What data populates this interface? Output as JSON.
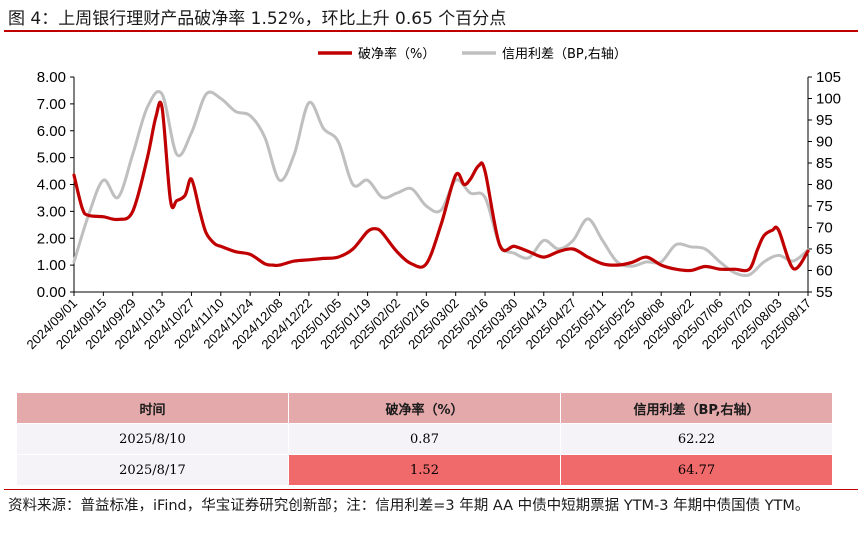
{
  "title": "图 4：上周银行理财产品破净率 1.52%，环比上升 0.65 个百分点",
  "chart_data": {
    "type": "line",
    "legend_position": "top",
    "grid": false,
    "x_ticks": [
      "2024/09/01",
      "2024/09/15",
      "2024/09/29",
      "2024/10/13",
      "2024/10/27",
      "2024/11/10",
      "2024/11/24",
      "2024/12/08",
      "2024/12/22",
      "2025/01/05",
      "2025/01/19",
      "2025/02/02",
      "2025/02/16",
      "2025/03/02",
      "2025/03/16",
      "2025/03/30",
      "2025/04/13",
      "2025/04/27",
      "2025/05/11",
      "2025/05/25",
      "2025/06/08",
      "2025/06/22",
      "2025/07/06",
      "2025/07/20",
      "2025/08/03",
      "2025/08/17"
    ],
    "y_left": {
      "ticks": [
        "0.00",
        "1.00",
        "2.00",
        "3.00",
        "4.00",
        "5.00",
        "6.00",
        "7.00",
        "8.00"
      ],
      "range": [
        0,
        8
      ]
    },
    "y_right": {
      "ticks": [
        "55",
        "60",
        "65",
        "70",
        "75",
        "80",
        "85",
        "90",
        "95",
        "100",
        "105"
      ],
      "range": [
        55,
        105
      ]
    },
    "series": [
      {
        "name": "破净率（%）",
        "color": "#c00000",
        "axis": "left",
        "x": [
          "2024/09/01",
          "2024/09/05",
          "2024/09/08",
          "2024/09/15",
          "2024/09/22",
          "2024/09/29",
          "2024/10/06",
          "2024/10/10",
          "2024/10/13",
          "2024/10/17",
          "2024/10/20",
          "2024/10/24",
          "2024/10/27",
          "2024/10/31",
          "2024/11/03",
          "2024/11/07",
          "2024/11/10",
          "2024/11/17",
          "2024/11/24",
          "2024/12/01",
          "2024/12/05",
          "2024/12/08",
          "2024/12/15",
          "2024/12/22",
          "2024/12/29",
          "2025/01/05",
          "2025/01/12",
          "2025/01/19",
          "2025/01/23",
          "2025/01/26",
          "2025/02/02",
          "2025/02/09",
          "2025/02/16",
          "2025/02/23",
          "2025/03/02",
          "2025/03/06",
          "2025/03/09",
          "2025/03/13",
          "2025/03/16",
          "2025/03/23",
          "2025/03/30",
          "2025/04/06",
          "2025/04/13",
          "2025/04/20",
          "2025/04/27",
          "2025/05/04",
          "2025/05/11",
          "2025/05/18",
          "2025/05/25",
          "2025/06/01",
          "2025/06/08",
          "2025/06/15",
          "2025/06/22",
          "2025/06/29",
          "2025/07/06",
          "2025/07/13",
          "2025/07/20",
          "2025/07/24",
          "2025/07/27",
          "2025/07/31",
          "2025/08/03",
          "2025/08/10",
          "2025/08/17"
        ],
        "values": [
          4.35,
          3.1,
          2.85,
          2.8,
          2.7,
          3.0,
          5.0,
          6.5,
          6.85,
          3.4,
          3.4,
          3.6,
          4.2,
          3.0,
          2.2,
          1.8,
          1.7,
          1.5,
          1.4,
          1.05,
          1.0,
          1.0,
          1.15,
          1.2,
          1.25,
          1.3,
          1.6,
          2.25,
          2.35,
          2.2,
          1.5,
          1.05,
          1.05,
          2.5,
          4.35,
          4.0,
          4.2,
          4.7,
          4.5,
          1.75,
          1.7,
          1.5,
          1.3,
          1.5,
          1.6,
          1.3,
          1.05,
          1.0,
          1.1,
          1.3,
          1.0,
          0.85,
          0.8,
          0.95,
          0.85,
          0.85,
          0.85,
          1.6,
          2.1,
          2.3,
          2.3,
          0.87,
          1.52
        ]
      },
      {
        "name": "信用利差（BP,右轴）",
        "color": "#bfbfbf",
        "axis": "right",
        "x": [
          "2024/09/01",
          "2024/09/08",
          "2024/09/15",
          "2024/09/22",
          "2024/09/29",
          "2024/10/06",
          "2024/10/13",
          "2024/10/20",
          "2024/10/27",
          "2024/11/03",
          "2024/11/10",
          "2024/11/17",
          "2024/11/24",
          "2024/12/01",
          "2024/12/08",
          "2024/12/15",
          "2024/12/22",
          "2024/12/29",
          "2025/01/05",
          "2025/01/12",
          "2025/01/19",
          "2025/01/26",
          "2025/02/02",
          "2025/02/09",
          "2025/02/16",
          "2025/02/23",
          "2025/03/02",
          "2025/03/09",
          "2025/03/16",
          "2025/03/23",
          "2025/03/30",
          "2025/04/06",
          "2025/04/13",
          "2025/04/20",
          "2025/04/27",
          "2025/05/04",
          "2025/05/11",
          "2025/05/18",
          "2025/05/25",
          "2025/06/01",
          "2025/06/08",
          "2025/06/15",
          "2025/06/22",
          "2025/06/29",
          "2025/07/06",
          "2025/07/13",
          "2025/07/20",
          "2025/07/27",
          "2025/08/03",
          "2025/08/10",
          "2025/08/17"
        ],
        "values": [
          62,
          73,
          81,
          77,
          87,
          98,
          101,
          87,
          92,
          101,
          100,
          97,
          96,
          91,
          81,
          87,
          99,
          93,
          90,
          80,
          81,
          77,
          78,
          79,
          75,
          74,
          81,
          78,
          77,
          66,
          64,
          63,
          67,
          65,
          67,
          72,
          67,
          62,
          61,
          62,
          62,
          66,
          65.5,
          65,
          62,
          59.5,
          59,
          62,
          63.5,
          62.22,
          64.77
        ]
      }
    ]
  },
  "table": {
    "headers": [
      "时间",
      "破净率（%）",
      "信用利差（BP,右轴）"
    ],
    "rows": [
      [
        "2025/8/10",
        "0.87",
        "62.22"
      ],
      [
        "2025/8/17",
        "1.52",
        "64.77"
      ]
    ]
  },
  "source": "资料来源：普益标准，iFind，华宝证券研究创新部；注：信用利差=3 年期 AA 中债中短期票据 YTM-3 年期中债国债 YTM。"
}
